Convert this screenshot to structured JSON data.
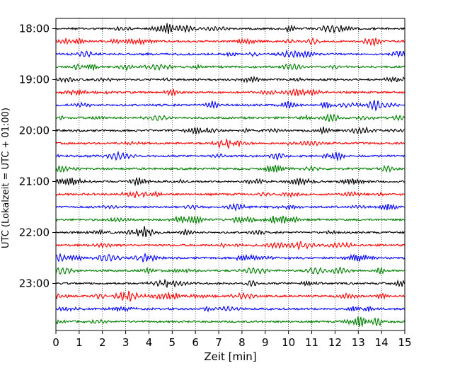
{
  "chart_data": {
    "type": "line",
    "title": "",
    "xlabel": "Zeit  [min]",
    "ylabel": "UTC (Lokalzeit = UTC + 01:00)",
    "xlim": [
      0,
      15
    ],
    "x_ticks": [
      "0",
      "1",
      "2",
      "3",
      "4",
      "5",
      "6",
      "7",
      "8",
      "9",
      "10",
      "11",
      "12",
      "13",
      "14",
      "15"
    ],
    "y_tick_labels": [
      "18:00",
      "19:00",
      "20:00",
      "21:00",
      "22:00",
      "23:00"
    ],
    "grid": "vertical dotted lines at each minute",
    "trace_interval_minutes": 15,
    "trace_count": 24,
    "color_cycle": [
      "#000000",
      "#ff0000",
      "#0000ff",
      "#008000"
    ],
    "series": [
      {
        "start": "18:00",
        "color": "#000000"
      },
      {
        "start": "18:15",
        "color": "#ff0000"
      },
      {
        "start": "18:30",
        "color": "#0000ff"
      },
      {
        "start": "18:45",
        "color": "#008000"
      },
      {
        "start": "19:00",
        "color": "#000000"
      },
      {
        "start": "19:15",
        "color": "#ff0000"
      },
      {
        "start": "19:30",
        "color": "#0000ff"
      },
      {
        "start": "19:45",
        "color": "#008000"
      },
      {
        "start": "20:00",
        "color": "#000000"
      },
      {
        "start": "20:15",
        "color": "#ff0000"
      },
      {
        "start": "20:30",
        "color": "#0000ff"
      },
      {
        "start": "20:45",
        "color": "#008000"
      },
      {
        "start": "21:00",
        "color": "#000000"
      },
      {
        "start": "21:15",
        "color": "#ff0000"
      },
      {
        "start": "21:30",
        "color": "#0000ff"
      },
      {
        "start": "21:45",
        "color": "#008000"
      },
      {
        "start": "22:00",
        "color": "#000000"
      },
      {
        "start": "22:15",
        "color": "#ff0000"
      },
      {
        "start": "22:30",
        "color": "#0000ff"
      },
      {
        "start": "22:45",
        "color": "#008000"
      },
      {
        "start": "23:00",
        "color": "#000000"
      },
      {
        "start": "23:15",
        "color": "#ff0000"
      },
      {
        "start": "23:30",
        "color": "#0000ff"
      },
      {
        "start": "23:45",
        "color": "#008000"
      }
    ]
  }
}
